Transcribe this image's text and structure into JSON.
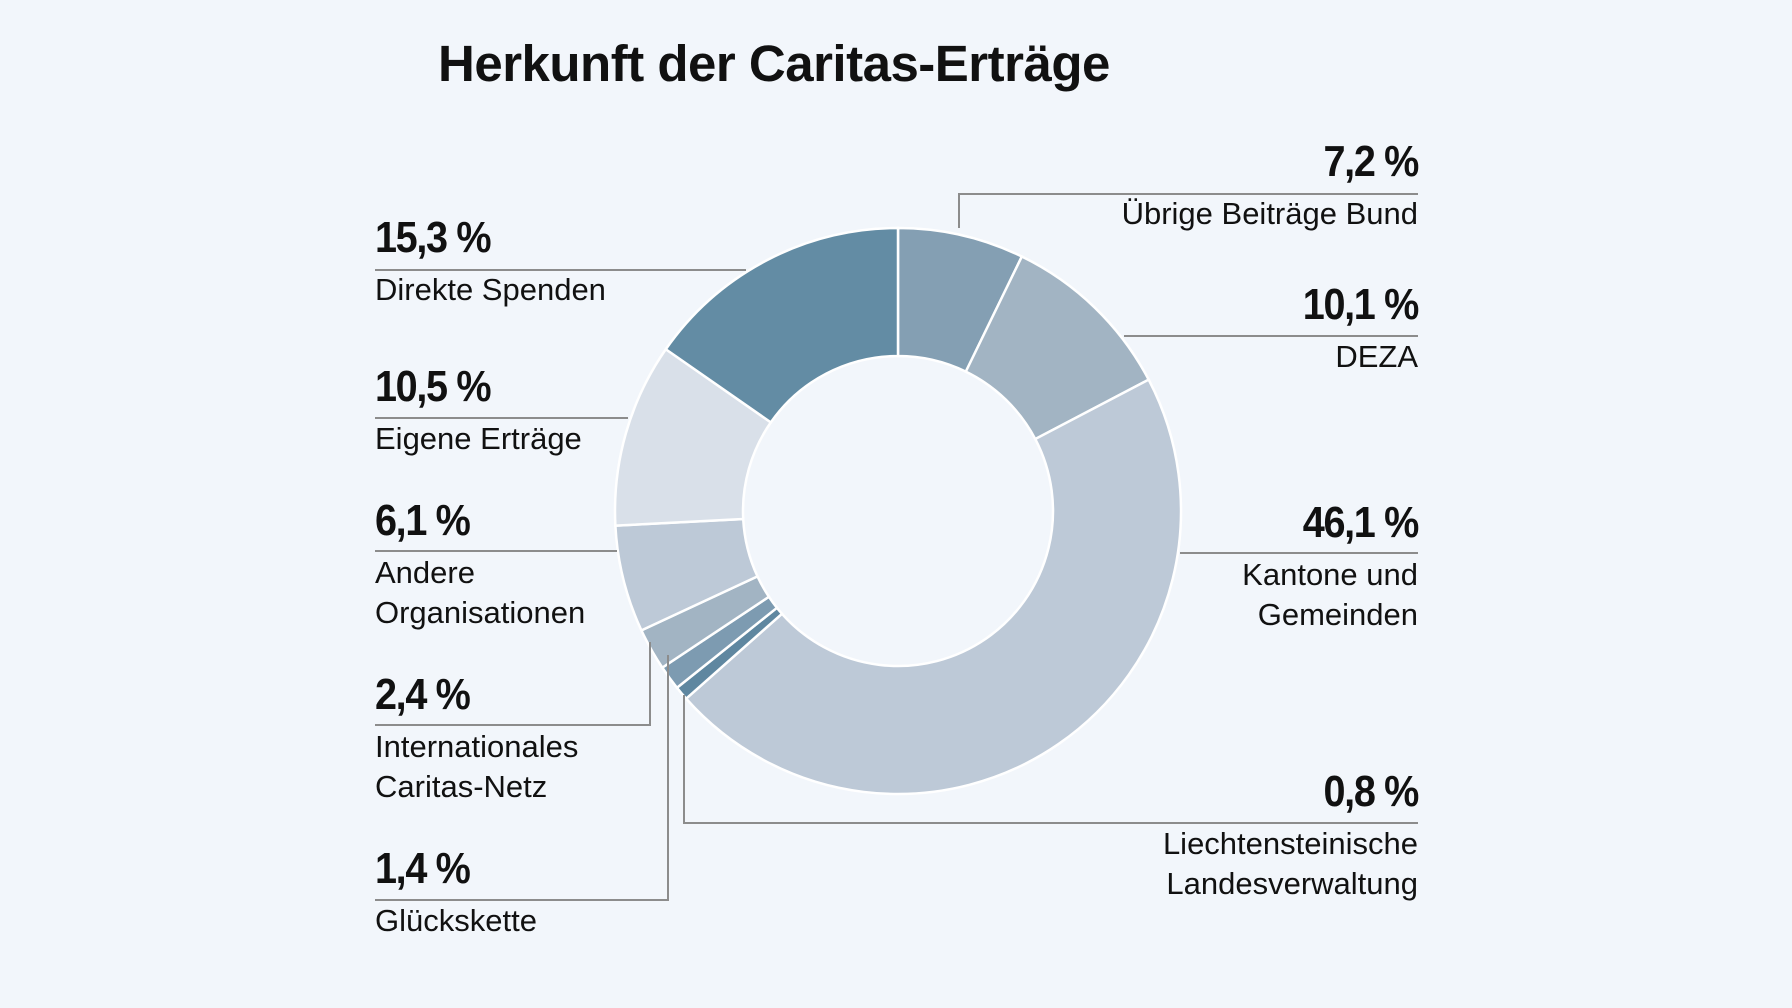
{
  "title": "Herkunft der Caritas-Erträge",
  "chart_data": {
    "type": "pie",
    "subtype": "donut",
    "title": "Herkunft der Caritas-Erträge",
    "unit": "%",
    "slices": [
      {
        "label": "Übrige Beiträge Bund",
        "value": 7.2,
        "display": "7,2 %",
        "color": "#849fb3"
      },
      {
        "label": "DEZA",
        "value": 10.1,
        "display": "10,1 %",
        "color": "#a2b4c3"
      },
      {
        "label": "Kantone und Gemeinden",
        "value": 46.1,
        "display": "46,1 %",
        "color": "#bdc9d7"
      },
      {
        "label": "Liechtensteinische Landesverwaltung",
        "value": 0.8,
        "display": "0,8 %",
        "color": "#5f87a0"
      },
      {
        "label": "Glückskette",
        "value": 1.4,
        "display": "1,4 %",
        "color": "#7d9bb1"
      },
      {
        "label": "Internationales Caritas-Netz",
        "value": 2.4,
        "display": "2,4 %",
        "color": "#a2b4c3"
      },
      {
        "label": "Andere Organisationen",
        "value": 6.1,
        "display": "6,1 %",
        "color": "#bdc9d7"
      },
      {
        "label": "Eigene Erträge",
        "value": 10.5,
        "display": "10,5 %",
        "color": "#d9e0e9"
      },
      {
        "label": "Direkte Spenden",
        "value": 15.3,
        "display": "15,3 %",
        "color": "#638ca4"
      }
    ]
  },
  "labels": {
    "uebrige": {
      "pct": "7,2 %",
      "name": "Übrige Beiträge Bund"
    },
    "deza": {
      "pct": "10,1 %",
      "name": "DEZA"
    },
    "kantone": {
      "pct": "46,1 %",
      "name": "Kantone und\nGemeinden"
    },
    "liechtenstein": {
      "pct": "0,8 %",
      "name": "Liechtensteinische\nLandesverwaltung"
    },
    "glueckskette": {
      "pct": "1,4 %",
      "name": "Glückskette"
    },
    "international": {
      "pct": "2,4 %",
      "name": "Internationales\nCaritas-Netz"
    },
    "andere": {
      "pct": "6,1 %",
      "name": "Andere\nOrganisationen"
    },
    "eigene": {
      "pct": "10,5 %",
      "name": "Eigene Erträge"
    },
    "direkte": {
      "pct": "15,3 %",
      "name": "Direkte Spenden"
    }
  }
}
